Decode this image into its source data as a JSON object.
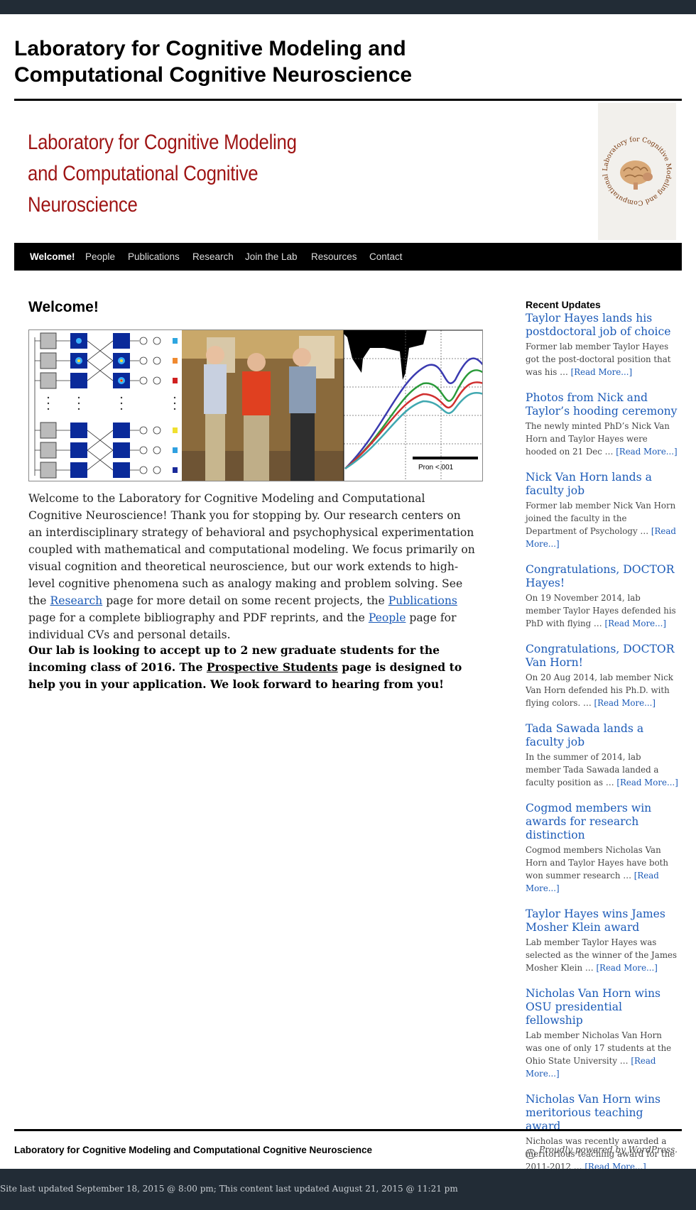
{
  "site": {
    "title": "Laboratory for Cognitive Modeling and Computational Cognitive Neuroscience"
  },
  "banner": {
    "lines": [
      "Laboratory for Cognitive Modeling",
      "and Computational Cognitive",
      "Neuroscience"
    ],
    "logo_ring_text": "Laboratory for Cognitive Modeling and Computational Cognitive Neuroscience"
  },
  "nav": {
    "items": [
      {
        "label": "Welcome!",
        "active": true
      },
      {
        "label": "People"
      },
      {
        "label": "Publications"
      },
      {
        "label": "Research"
      },
      {
        "label": "Join the Lab"
      },
      {
        "label": "Resources"
      },
      {
        "label": "Contact"
      }
    ]
  },
  "main": {
    "heading": "Welcome!",
    "hero_plot_label": "Pron <.001",
    "intro_part1": "Welcome to the Laboratory for Cognitive Modeling and Computational Cognitive Neuroscience! Thank you for stopping by. Our research centers on an interdisciplinary strategy of  behavioral and psychophysical experimentation coupled with mathematical and computational modeling. We focus primarily on visual cognition and theoretical neuroscience, but our work extends to high-level cognitive phenomena such as analogy making and problem solving. See the ",
    "link_research": "Research",
    "intro_part2": " page for more detail on some recent projects, the ",
    "link_publications": "Publications",
    "intro_part3": " page for a complete bibliography and PDF reprints, and the ",
    "link_people": "People",
    "intro_part4": " page for individual CVs and personal details.",
    "recruit_part1": "Our lab is looking to accept up to 2 new graduate students for the incoming class of 2016. The ",
    "link_prospective": "Prospective Students",
    "recruit_part2": " page is designed to help you in your application. We look forward to hearing from you!"
  },
  "sidebar": {
    "title": "Recent Updates",
    "read_more": "[Read More...]",
    "updates": [
      {
        "title": "Taylor Hayes lands his postdoctoral job of choice",
        "excerpt": "Former lab member Taylor Hayes got the post-doctoral position that was his … "
      },
      {
        "title": "Photos from Nick and Taylor’s hooding ceremony",
        "excerpt": "The newly minted PhD’s Nick Van Horn and Taylor Hayes were hooded on 21 Dec … "
      },
      {
        "title": "Nick Van Horn lands a faculty job",
        "excerpt": "Former lab member Nick Van Horn joined the faculty in the Department of Psychology … "
      },
      {
        "title": "Congratulations, DOCTOR Hayes!",
        "excerpt": "On 19 November 2014, lab member Taylor Hayes defended his PhD with flying … "
      },
      {
        "title": "Congratulations, DOCTOR Van Horn!",
        "excerpt": "On 20 Aug 2014, lab member Nick Van Horn defended his Ph.D. with flying colors. … "
      },
      {
        "title": "Tada Sawada lands a faculty job",
        "excerpt": "In the summer of 2014, lab member Tada Sawada landed a faculty position as … "
      },
      {
        "title": "Cogmod members win awards for research distinction",
        "excerpt": "Cogmod members Nicholas Van Horn and Taylor Hayes have both won summer research … "
      },
      {
        "title": "Taylor Hayes wins James Mosher Klein award",
        "excerpt": "Lab member Taylor Hayes was selected as the winner of the James Mosher Klein … "
      },
      {
        "title": "Nicholas Van Horn wins OSU presidential fellowship",
        "excerpt": "Lab member Nicholas Van Horn was one of only 17 students at the Ohio State University … "
      },
      {
        "title": "Nicholas Van Horn wins meritorious teaching award",
        "excerpt": "Nicholas was recently awarded a meritorious teaching award for the 2011-2012 … "
      }
    ]
  },
  "footer": {
    "site_title": "Laboratory for Cognitive Modeling and Computational Cognitive Neuroscience",
    "wp_icon_glyph": "W",
    "powered_by": "Proudly powered by WordPress.",
    "last_updated": "Site last updated September 18, 2015 @ 8:00 pm; This content last updated August 21, 2015 @ 11:21 pm"
  }
}
